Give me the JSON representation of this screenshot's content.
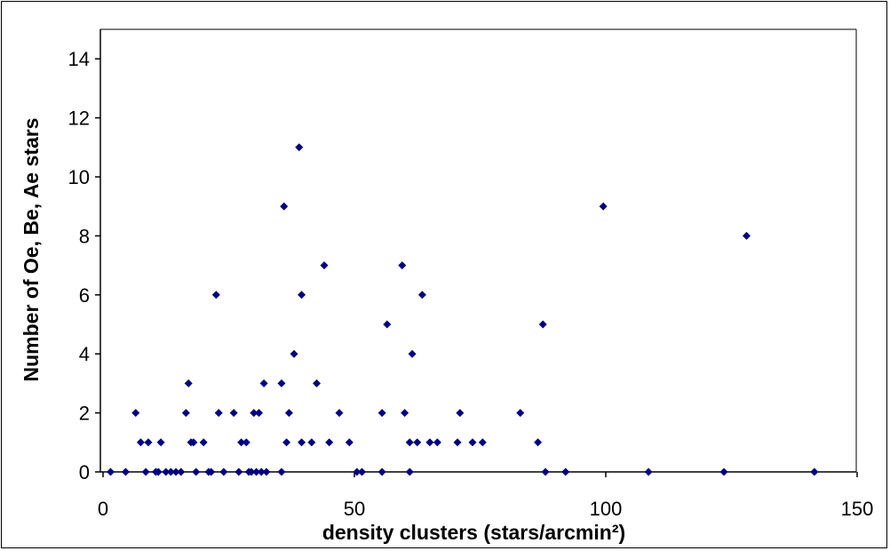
{
  "chart_data": {
    "type": "scatter",
    "title": "",
    "xlabel": "density clusters (stars/arcmin²)",
    "ylabel": "Number of Oe, Be, Ae stars",
    "xlim": [
      0,
      150
    ],
    "ylim": [
      0,
      15
    ],
    "xticks": [
      0,
      50,
      100,
      150
    ],
    "yticks": [
      0,
      2,
      4,
      6,
      8,
      10,
      12,
      14
    ],
    "grid": false,
    "legend": "none",
    "marker": "diamond",
    "marker_color": "#000080",
    "series": [
      {
        "points": [
          [
            1.5,
            0
          ],
          [
            4.5,
            0
          ],
          [
            6.5,
            2
          ],
          [
            7.5,
            1
          ],
          [
            8.5,
            0
          ],
          [
            9,
            1
          ],
          [
            10.5,
            0
          ],
          [
            11,
            0
          ],
          [
            11.5,
            1
          ],
          [
            12.5,
            0
          ],
          [
            13.5,
            0
          ],
          [
            14.5,
            0
          ],
          [
            15.5,
            0
          ],
          [
            16.5,
            2
          ],
          [
            17,
            3
          ],
          [
            17.5,
            1
          ],
          [
            18,
            1
          ],
          [
            18.5,
            0
          ],
          [
            20,
            1
          ],
          [
            21,
            0
          ],
          [
            21.5,
            0
          ],
          [
            22.5,
            6
          ],
          [
            23,
            2
          ],
          [
            24,
            0
          ],
          [
            26,
            2
          ],
          [
            27,
            0
          ],
          [
            27.5,
            1
          ],
          [
            28.5,
            1
          ],
          [
            29,
            0
          ],
          [
            29.5,
            0
          ],
          [
            30,
            2
          ],
          [
            30.5,
            0
          ],
          [
            31,
            2
          ],
          [
            31.5,
            0
          ],
          [
            32,
            3
          ],
          [
            32.5,
            0
          ],
          [
            35.5,
            3
          ],
          [
            35.5,
            0
          ],
          [
            36,
            9
          ],
          [
            36.5,
            1
          ],
          [
            37,
            2
          ],
          [
            38,
            4
          ],
          [
            39,
            11
          ],
          [
            39.5,
            6
          ],
          [
            39.5,
            1
          ],
          [
            41.5,
            1
          ],
          [
            42.5,
            3
          ],
          [
            44,
            7
          ],
          [
            45,
            1
          ],
          [
            47,
            2
          ],
          [
            49,
            1
          ],
          [
            50.5,
            0
          ],
          [
            51.5,
            0
          ],
          [
            55.5,
            2
          ],
          [
            55.5,
            0
          ],
          [
            56.5,
            5
          ],
          [
            59.5,
            7
          ],
          [
            60,
            2
          ],
          [
            61,
            1
          ],
          [
            61,
            0
          ],
          [
            61.5,
            4
          ],
          [
            62.5,
            1
          ],
          [
            63.5,
            6
          ],
          [
            65,
            1
          ],
          [
            66.5,
            1
          ],
          [
            70.5,
            1
          ],
          [
            71,
            2
          ],
          [
            73.5,
            1
          ],
          [
            75.5,
            1
          ],
          [
            83,
            2
          ],
          [
            86.5,
            1
          ],
          [
            87.5,
            5
          ],
          [
            88,
            0
          ],
          [
            92,
            0
          ],
          [
            99.5,
            9
          ],
          [
            108.5,
            0
          ],
          [
            123.5,
            0
          ],
          [
            128,
            8
          ],
          [
            141.5,
            0
          ]
        ]
      }
    ]
  }
}
